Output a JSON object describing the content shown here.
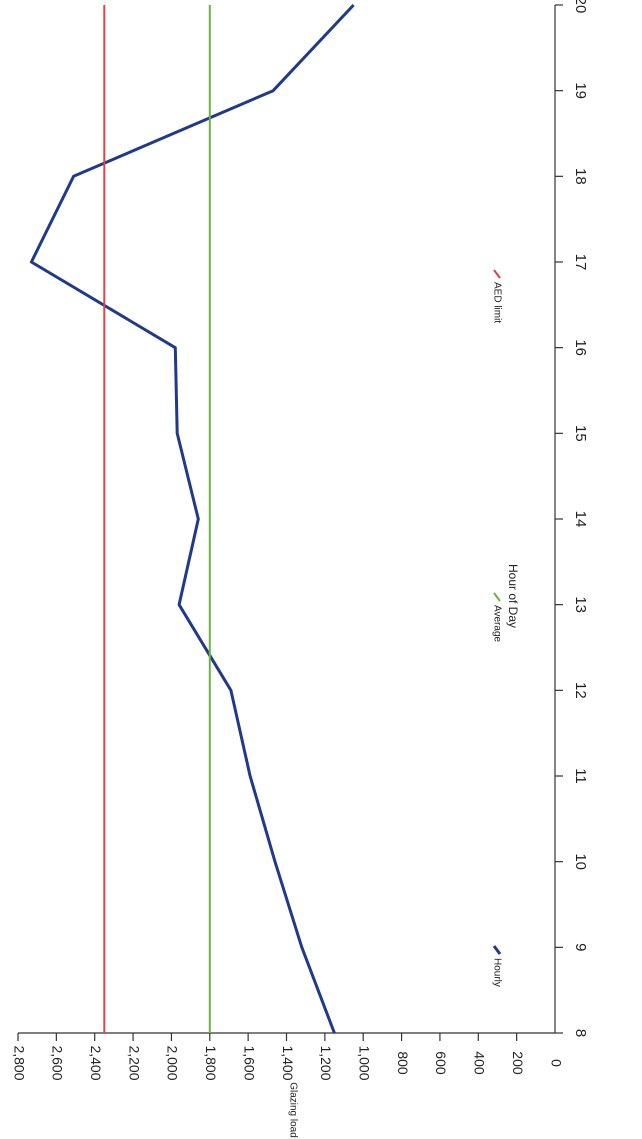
{
  "chart_data": {
    "type": "line",
    "orientation": "rotated 90° clockwise (hour axis runs top-to-bottom on the right, load axis runs right-to-left at the bottom)",
    "xlabel": "Hour of Day",
    "ylabel": "Glazing load (Btuh)",
    "x": [
      8,
      9,
      10,
      11,
      12,
      13,
      14,
      15,
      16,
      17,
      18,
      19,
      20
    ],
    "xlim": [
      8,
      20
    ],
    "ylim": [
      0,
      2800
    ],
    "x_ticks": [
      "8",
      "9",
      "10",
      "11",
      "12",
      "13",
      "14",
      "15",
      "16",
      "17",
      "18",
      "19",
      "20"
    ],
    "y_ticks": [
      "0",
      "200",
      "400",
      "600",
      "800",
      "1,000",
      "1,200",
      "1,400",
      "1,600",
      "1,800",
      "2,000",
      "2,200",
      "2,400",
      "2,600",
      "2,800"
    ],
    "series": [
      {
        "name": "Hourly",
        "color": "#1f3a8a",
        "values": [
          1150,
          1320,
          1460,
          1590,
          1690,
          1960,
          1860,
          1970,
          1980,
          2730,
          2510,
          1470,
          1050
        ]
      },
      {
        "name": "Average",
        "color": "#6cb33f",
        "values": [
          1800,
          1800,
          1800,
          1800,
          1800,
          1800,
          1800,
          1800,
          1800,
          1800,
          1800,
          1800,
          1800
        ]
      },
      {
        "name": "AED limit",
        "color": "#e0433f",
        "values": [
          2350,
          2350,
          2350,
          2350,
          2350,
          2350,
          2350,
          2350,
          2350,
          2350,
          2350,
          2350,
          2350
        ]
      }
    ],
    "legend_position": "left, below the chart"
  }
}
